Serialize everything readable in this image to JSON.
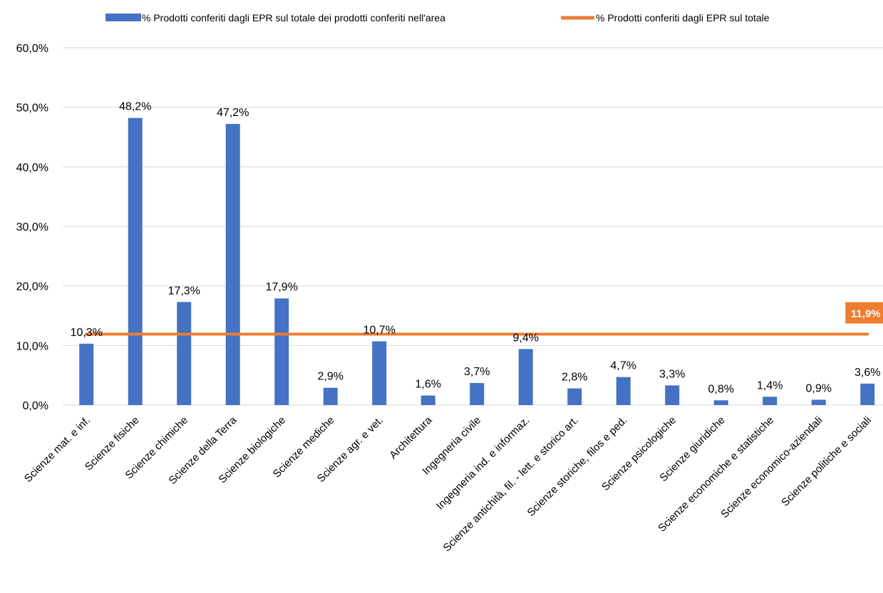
{
  "chart_data": {
    "type": "bar",
    "categories": [
      "Scienze mat. e inf.",
      "Scienze fisiche",
      "Scienze chimiche",
      "Scienze della Terra",
      "Scienze biologiche",
      "Scienze mediche",
      "Scienze agr. e vet.",
      "Architettura",
      "Ingegneria civile",
      "Ingegneria ind. e informaz.",
      "Scienze antichità, fil. - lett. e storico art.",
      "Scienze storiche, filos e ped.",
      "Scienze psicologiche",
      "Scienze giuridiche",
      "Scienze economiche e statistiche",
      "Scienze economico-aziendali",
      "Scienze politiche e sociali"
    ],
    "series": [
      {
        "name": "% Prodotti conferiti dagli EPR sul totale dei prodotti conferiti nell'area",
        "type": "bar",
        "color": "#4472C4",
        "values": [
          10.3,
          48.2,
          17.3,
          47.2,
          17.9,
          2.9,
          10.7,
          1.6,
          3.7,
          9.4,
          2.8,
          4.7,
          3.3,
          0.8,
          1.4,
          0.9,
          3.6
        ],
        "labels": [
          "10,3%",
          "48,2%",
          "17,3%",
          "47,2%",
          "17,9%",
          "2,9%",
          "10,7%",
          "1,6%",
          "3,7%",
          "9,4%",
          "2,8%",
          "4,7%",
          "3,3%",
          "0,8%",
          "1,4%",
          "0,9%",
          "3,6%"
        ]
      },
      {
        "name": "% Prodotti conferiti dagli EPR sul totale",
        "type": "line",
        "color": "#ED7D31",
        "value": 11.9,
        "label": "11,9%"
      }
    ],
    "ylim": [
      0,
      60
    ],
    "yticks": [
      {
        "value": 0,
        "label": "0,0%"
      },
      {
        "value": 10,
        "label": "10,0%"
      },
      {
        "value": 20,
        "label": "20,0%"
      },
      {
        "value": 30,
        "label": "30,0%"
      },
      {
        "value": 40,
        "label": "40,0%"
      },
      {
        "value": 50,
        "label": "50,0%"
      },
      {
        "value": 60,
        "label": "60,0%"
      }
    ],
    "grid": true,
    "gridColor": "#D9D9D9",
    "legend_position": "top"
  }
}
